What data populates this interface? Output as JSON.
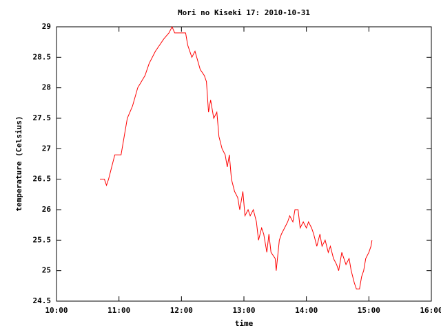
{
  "chart_data": {
    "type": "line",
    "title": "Mori no Kiseki 17: 2010-10-31",
    "x_label": "time",
    "y_label": "temperature (Celsius)",
    "x": [
      641.7,
      646,
      648,
      650,
      653,
      656,
      662,
      665,
      668,
      673,
      678,
      685,
      689,
      695,
      699,
      703,
      708,
      711,
      713.5,
      724,
      726,
      730,
      733,
      738,
      742,
      744,
      746,
      748,
      751,
      754,
      756,
      759,
      762,
      764,
      766,
      768,
      771,
      774,
      776,
      779,
      781,
      784,
      786,
      789,
      792,
      794,
      797,
      799,
      802,
      804,
      806,
      810,
      811,
      814,
      816,
      819,
      822,
      824,
      827,
      829,
      832,
      834,
      837,
      840,
      842,
      845,
      847,
      850,
      853,
      855,
      858,
      861,
      863,
      866,
      869,
      871,
      874,
      878,
      881,
      883,
      886,
      888,
      891,
      893,
      895,
      897,
      900,
      902,
      903
    ],
    "series": [
      {
        "name": "temperature",
        "color": "#ff0000",
        "values": [
          26.5,
          26.5,
          26.4,
          26.5,
          26.7,
          26.9,
          26.9,
          27.2,
          27.5,
          27.7,
          28.0,
          28.2,
          28.4,
          28.6,
          28.7,
          28.8,
          28.9,
          29.0,
          28.9,
          28.9,
          28.7,
          28.5,
          28.6,
          28.3,
          28.2,
          28.1,
          27.6,
          27.8,
          27.5,
          27.6,
          27.2,
          27.0,
          26.9,
          26.7,
          26.9,
          26.5,
          26.3,
          26.2,
          26.0,
          26.3,
          25.9,
          26.0,
          25.9,
          26.0,
          25.8,
          25.5,
          25.7,
          25.6,
          25.3,
          25.6,
          25.3,
          25.2,
          25.0,
          25.5,
          25.6,
          25.7,
          25.8,
          25.9,
          25.8,
          26.0,
          26.0,
          25.7,
          25.8,
          25.7,
          25.8,
          25.7,
          25.6,
          25.4,
          25.6,
          25.4,
          25.5,
          25.3,
          25.4,
          25.2,
          25.1,
          25.0,
          25.3,
          25.1,
          25.2,
          25.0,
          24.8,
          24.7,
          24.7,
          24.9,
          25.0,
          25.2,
          25.3,
          25.4,
          25.5
        ]
      }
    ],
    "xlim": [
      600,
      960
    ],
    "xticks": [
      {
        "value": 600,
        "label": "10:00"
      },
      {
        "value": 660,
        "label": "11:00"
      },
      {
        "value": 720,
        "label": "12:00"
      },
      {
        "value": 780,
        "label": "13:00"
      },
      {
        "value": 840,
        "label": "14:00"
      },
      {
        "value": 900,
        "label": "15:00"
      },
      {
        "value": 960,
        "label": "16:00"
      }
    ],
    "ylim": [
      24.5,
      29
    ],
    "yticks": [
      24.5,
      25,
      25.5,
      26,
      26.5,
      27,
      27.5,
      28,
      28.5,
      29
    ],
    "grid": false
  }
}
